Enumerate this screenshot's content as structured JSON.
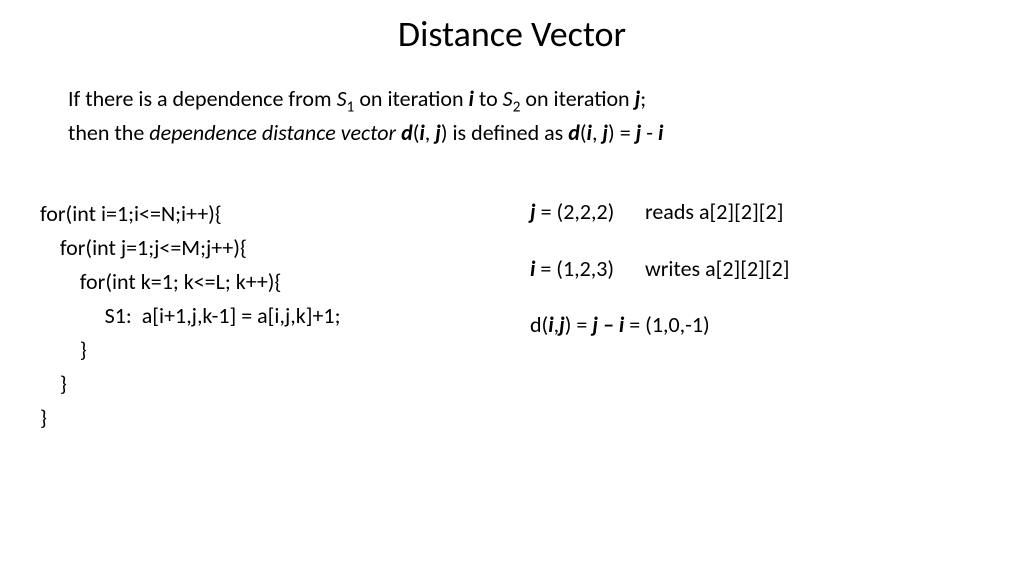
{
  "title": "Distance Vector",
  "definition": {
    "line1_pre": "If there is a dependence from ",
    "s1_s": "S",
    "s1_sub": "1",
    "line1_mid1": " on iteration ",
    "i_var": "i",
    "line1_mid2": " to ",
    "s2_s": "S",
    "s2_sub": "2",
    "line1_mid3": " on iteration ",
    "j_var": "j",
    "line1_end": ";",
    "line2_pre": "then the ",
    "ddv": "dependence distance vector ",
    "d_var": "d",
    "paren_open": "(",
    "comma": ", ",
    "paren_close": ")",
    "line2_mid": " is defined as ",
    "eq": " = ",
    "minus": " - "
  },
  "code": {
    "l1": "for(int i=1;i<=N;i++){",
    "l2": "    for(int j=1;j<=M;j++){",
    "l3": "        for(int k=1; k<=L; k++){",
    "l4": "             S1:  a[i+1,j,k-1] = a[i,j,k]+1;",
    "l5": "        }",
    "l6": "    }",
    "l7": "}"
  },
  "examples": {
    "j_rhs": " = (2,2,2)",
    "j_desc": "reads a[2][2][2]",
    "i_rhs": " = (1,2,3)",
    "i_desc": "writes a[2][2][2]",
    "d_pre": "d(",
    "d_comma": ",",
    "d_close": ") = ",
    "d_minus": " – ",
    "d_rhs": " = (1,0,-1)"
  },
  "colors": {
    "bg": "#ffffff",
    "text": "#000000"
  },
  "fonts": {
    "title_size": 36,
    "body_size": 22
  }
}
